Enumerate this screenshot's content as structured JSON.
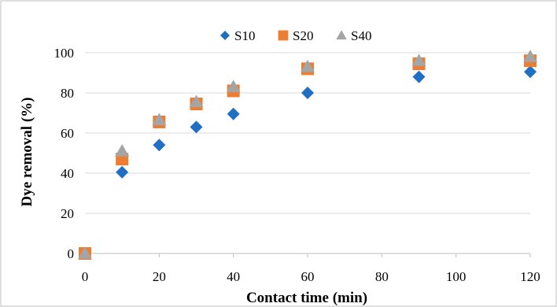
{
  "chart_data": {
    "type": "scatter",
    "title": "",
    "xlabel": "Contact time (min)",
    "ylabel": "Dye removal (%)",
    "xlim": [
      0,
      120
    ],
    "ylim": [
      0,
      100
    ],
    "xticks": [
      0,
      20,
      40,
      60,
      80,
      100,
      120
    ],
    "yticks": [
      0,
      20,
      40,
      60,
      80,
      100
    ],
    "grid": "horizontal",
    "legend_position": "top-center",
    "series": [
      {
        "name": "S10",
        "marker": "diamond",
        "color": "#1f6fc5",
        "x": [
          0,
          10,
          20,
          30,
          40,
          60,
          90,
          120
        ],
        "y": [
          0,
          40.5,
          54,
          63,
          69.5,
          80,
          88,
          90.5
        ]
      },
      {
        "name": "S20",
        "marker": "square",
        "color": "#ed7d31",
        "x": [
          0,
          10,
          20,
          30,
          40,
          60,
          90,
          120
        ],
        "y": [
          0,
          47,
          65.5,
          74.5,
          81,
          92,
          94.5,
          96
        ]
      },
      {
        "name": "S40",
        "marker": "triangle",
        "color": "#a5a5a5",
        "x": [
          0,
          10,
          20,
          30,
          40,
          60,
          90,
          120
        ],
        "y": [
          0,
          51,
          66.5,
          75.5,
          83,
          93,
          96,
          98
        ]
      }
    ]
  }
}
